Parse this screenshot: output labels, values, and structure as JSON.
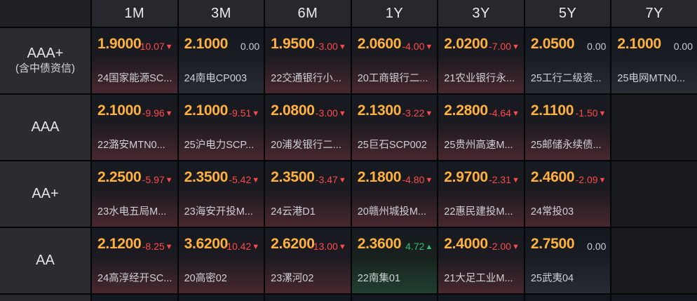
{
  "table": {
    "columns": [
      "1M",
      "3M",
      "6M",
      "1Y",
      "3Y",
      "5Y",
      "7Y"
    ],
    "rows": [
      {
        "label": "AAA+",
        "sublabel": "(含中债资信)",
        "cells": [
          {
            "value": "1.9000",
            "change": "-10.07",
            "direction": "down",
            "bond": "24国家能源SC..."
          },
          {
            "value": "2.1000",
            "change": "0.00",
            "direction": "flat",
            "bond": "24南电CP003"
          },
          {
            "value": "1.9500",
            "change": "-3.00",
            "direction": "down",
            "bond": "22交通银行小..."
          },
          {
            "value": "2.0600",
            "change": "-4.00",
            "direction": "down",
            "bond": "20工商银行二..."
          },
          {
            "value": "2.0200",
            "change": "-7.00",
            "direction": "down",
            "bond": "21农业银行永..."
          },
          {
            "value": "2.0500",
            "change": "0.00",
            "direction": "flat",
            "bond": "25工行二级资..."
          },
          {
            "value": "2.1000",
            "change": "0.00",
            "direction": "flat",
            "bond": "25电网MTN0..."
          }
        ]
      },
      {
        "label": "AAA",
        "sublabel": "",
        "cells": [
          {
            "value": "2.1000",
            "change": "-9.96",
            "direction": "down",
            "bond": "22潞安MTN0..."
          },
          {
            "value": "2.1000",
            "change": "-9.51",
            "direction": "down",
            "bond": "25沪电力SCP..."
          },
          {
            "value": "2.0800",
            "change": "-3.00",
            "direction": "down",
            "bond": "20浦发银行二..."
          },
          {
            "value": "2.1300",
            "change": "-3.22",
            "direction": "down",
            "bond": "25巨石SCP002"
          },
          {
            "value": "2.2800",
            "change": "-4.64",
            "direction": "down",
            "bond": "25贵州高速M..."
          },
          {
            "value": "2.1100",
            "change": "-1.50",
            "direction": "down",
            "bond": "25邮储永续债..."
          },
          null
        ]
      },
      {
        "label": "AA+",
        "sublabel": "",
        "cells": [
          {
            "value": "2.2500",
            "change": "-5.97",
            "direction": "down",
            "bond": "23水电五局M..."
          },
          {
            "value": "2.3500",
            "change": "-5.42",
            "direction": "down",
            "bond": "23海安开投M..."
          },
          {
            "value": "2.3500",
            "change": "-3.47",
            "direction": "down",
            "bond": "24云港D1"
          },
          {
            "value": "2.1800",
            "change": "-4.80",
            "direction": "down",
            "bond": "20赣州城投M..."
          },
          {
            "value": "2.9700",
            "change": "-2.31",
            "direction": "down",
            "bond": "22惠民建投M..."
          },
          {
            "value": "2.4600",
            "change": "-2.09",
            "direction": "down",
            "bond": "24常投03"
          },
          null
        ]
      },
      {
        "label": "AA",
        "sublabel": "",
        "cells": [
          {
            "value": "2.1200",
            "change": "-8.25",
            "direction": "down",
            "bond": "24高淳经开SC..."
          },
          {
            "value": "3.6200",
            "change": "-10.42",
            "direction": "down",
            "bond": "20高密02"
          },
          {
            "value": "2.6200",
            "change": "-13.00",
            "direction": "down",
            "bond": "23漯河02"
          },
          {
            "value": "2.3600",
            "change": "4.72",
            "direction": "up",
            "bond": "22南集01"
          },
          {
            "value": "2.4000",
            "change": "-2.00",
            "direction": "down",
            "bond": "21大足工业M..."
          },
          {
            "value": "2.7500",
            "change": "0.00",
            "direction": "flat",
            "bond": "25武夷04"
          }
        ]
      }
    ]
  },
  "icons": {
    "down_arrow": "▼",
    "up_arrow": "▲"
  },
  "colors": {
    "value_text": "#ffb13f",
    "down_text": "#ff4a4c",
    "up_text": "#2fbf72",
    "flat_text": "#c9ced4",
    "down_cell_bottom": "#482730",
    "up_cell_bottom": "#204030",
    "header_bg": "#26282d",
    "label_bg": "#2a2c31",
    "cell_bg_top": "#161a21"
  }
}
